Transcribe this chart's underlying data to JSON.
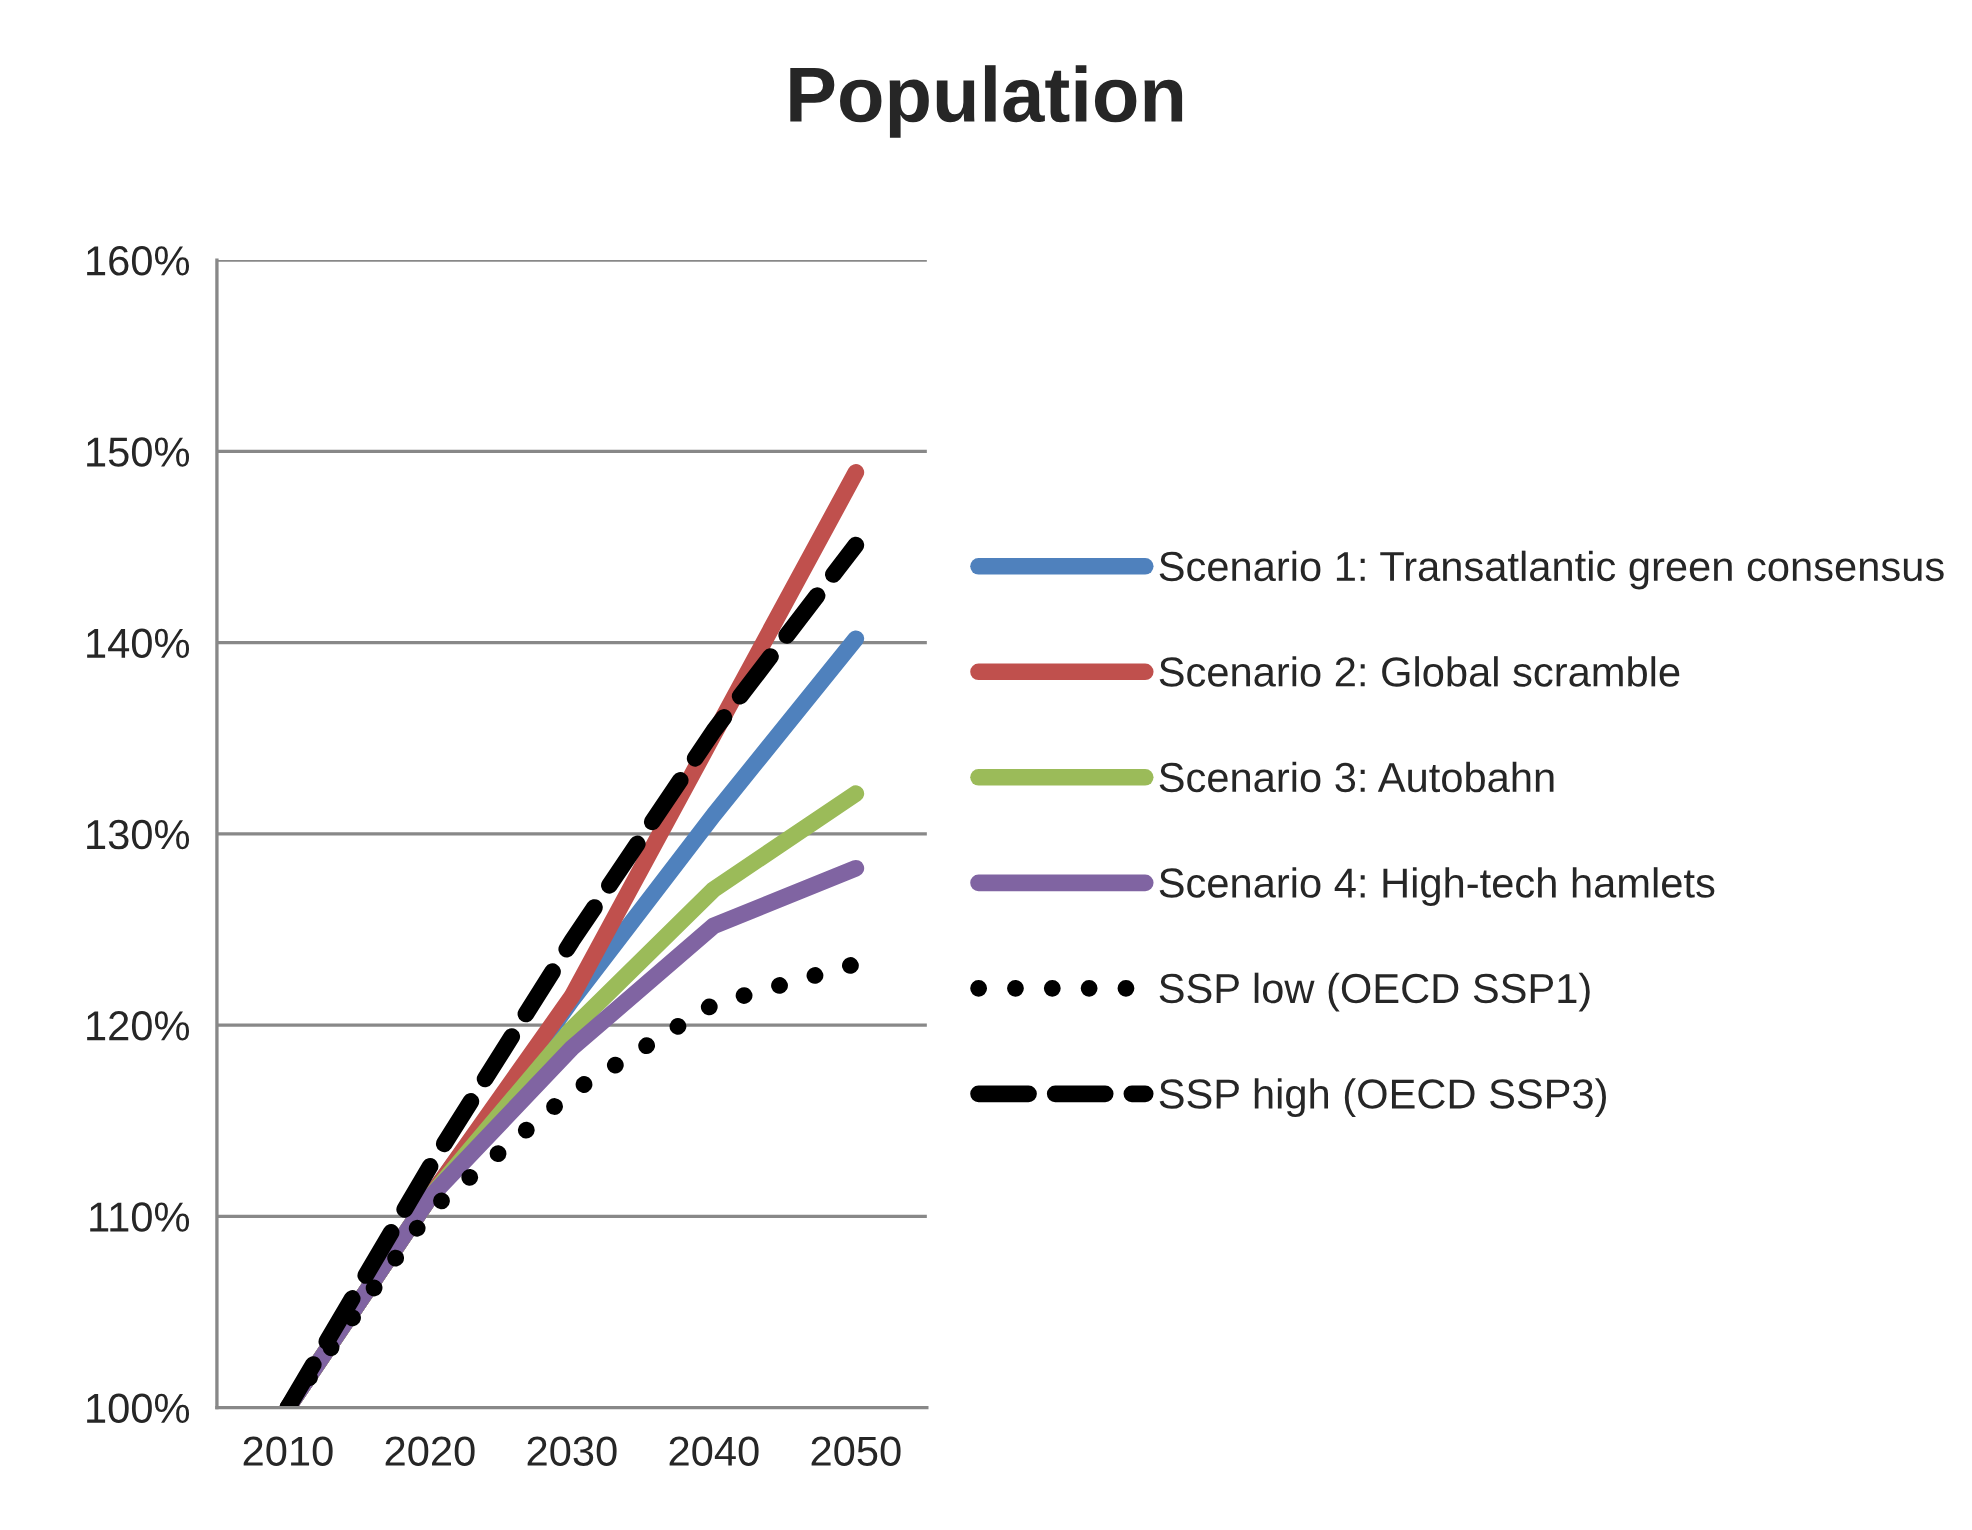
{
  "chart_data": {
    "type": "line",
    "title": "Population",
    "categories": [
      "2010",
      "2020",
      "2030",
      "2040",
      "2050"
    ],
    "series": [
      {
        "name": "Scenario 1: Transatlantic green consensus",
        "color": "#4f81bd",
        "values": [
          100,
          111,
          121.3,
          131.0,
          140.2
        ]
      },
      {
        "name": "Scenario 2: Global scramble",
        "color": "#c0504d",
        "values": [
          100,
          111,
          121.5,
          135.2,
          148.9
        ]
      },
      {
        "name": "Scenario 3: Autobahn",
        "color": "#9bbb59",
        "values": [
          100,
          111,
          119.8,
          127.1,
          132.1
        ]
      },
      {
        "name": "Scenario 4: High-tech hamlets",
        "color": "#8064a2",
        "values": [
          100,
          111,
          118.8,
          125.2,
          128.2
        ]
      },
      {
        "name": "SSP low (OECD SSP1)",
        "color": "#000000",
        "line_style": "dotted",
        "values": [
          100,
          110.3,
          116.5,
          121.1,
          123.2
        ]
      },
      {
        "name": "SSP high (OECD SSP3)",
        "color": "#000000",
        "line_style": "dashed",
        "values": [
          100,
          112.6,
          124.4,
          135.4,
          145.1
        ]
      }
    ],
    "ylim": [
      100,
      160
    ],
    "yticks": [
      {
        "value": 100,
        "label": "100%"
      },
      {
        "value": 110,
        "label": "110%"
      },
      {
        "value": 120,
        "label": "120%"
      },
      {
        "value": 130,
        "label": "130%"
      },
      {
        "value": 140,
        "label": "140%"
      },
      {
        "value": 150,
        "label": "150%"
      },
      {
        "value": 160,
        "label": "160%"
      }
    ],
    "grid": "y",
    "legend": "right",
    "marker": "none",
    "line_style": "solid"
  }
}
